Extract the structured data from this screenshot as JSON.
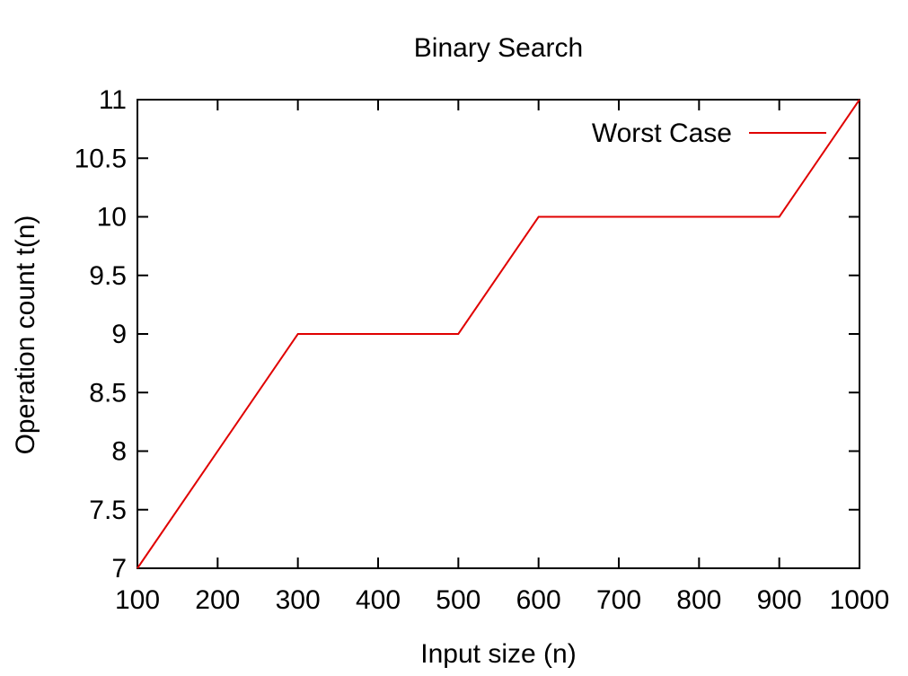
{
  "chart_data": {
    "type": "line",
    "title": "Binary Search",
    "xlabel": "Input size (n)",
    "ylabel": "Operation count t(n)",
    "xlim": [
      100,
      1000
    ],
    "ylim": [
      7,
      11
    ],
    "x_ticks": [
      100,
      200,
      300,
      400,
      500,
      600,
      700,
      800,
      900,
      1000
    ],
    "x_tick_labels": [
      "100",
      "200",
      "300",
      "400",
      "500",
      "600",
      "700",
      "800",
      "900",
      "1000"
    ],
    "y_ticks": [
      7,
      7.5,
      8,
      8.5,
      9,
      9.5,
      10,
      10.5,
      11
    ],
    "y_tick_labels": [
      "7",
      "7.5",
      "8",
      "8.5",
      "9",
      "9.5",
      "10",
      "10.5",
      "11"
    ],
    "grid": false,
    "legend_position": "top-right",
    "series": [
      {
        "name": "Worst Case",
        "color": "#e00000",
        "x": [
          100,
          300,
          500,
          600,
          900,
          1000
        ],
        "y": [
          7,
          9,
          9,
          10,
          10,
          11
        ]
      }
    ]
  }
}
